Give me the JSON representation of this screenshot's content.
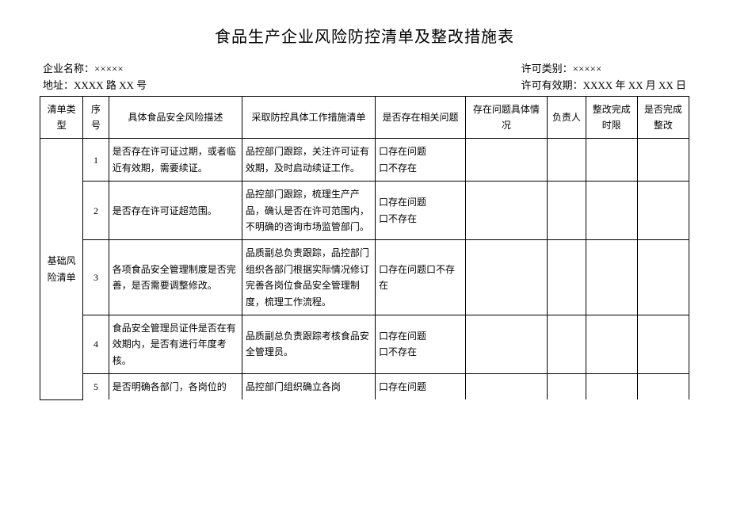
{
  "title": "食品生产企业风险防控清单及整改措施表",
  "meta": {
    "company_label": "企业名称：",
    "company_value": "×××××",
    "addr_label": "地址：",
    "addr_value": "XXXX 路 XX 号",
    "permit_type_label": "许可类别：",
    "permit_type_value": "×××××",
    "permit_valid_label": "许可有效期：",
    "permit_valid_value": "XXXX 年 XX 月 XX 日"
  },
  "headers": {
    "type": "清单类型",
    "seq": "序号",
    "risk": "具体食品安全风险描述",
    "action": "采取防控具体工作措施清单",
    "exist": "是否存在相关问题",
    "detail": "存在问题具体情况",
    "owner": "负责人",
    "due": "整改完成时限",
    "done": "是否完成整改"
  },
  "category": "基础风险清单",
  "checkbox_exist": "口存在问题",
  "checkbox_notexist": "口不存在",
  "checkbox_combo": "口存在问题口不存在",
  "rows": [
    {
      "seq": "1",
      "risk": "是否存在许可证过期，或者临近有效期，需要续证。",
      "action": "品控部门跟踪，关注许可证有效期，及时启动续证工作。"
    },
    {
      "seq": "2",
      "risk": "是否存在许可证超范围。",
      "action": "品控部门跟踪，梳理生产产品，确认是否在许可范围内，不明确的咨询市场监管部门。"
    },
    {
      "seq": "3",
      "risk": "各项食品安全管理制度是否完善，是否需要调整修改。",
      "action": "品质副总负责跟踪，品控部门组织各部门根据实际情况修订完善各岗位食品安全管理制度，梳理工作流程。"
    },
    {
      "seq": "4",
      "risk": "食品安全管理员证件是否在有效期内，是否有进行年度考核。",
      "action": "品质副总负责跟踪考核食品安全管理员。"
    },
    {
      "seq": "5",
      "risk": "是否明确各部门，各岗位的",
      "action": "品控部门组织确立各岗"
    }
  ]
}
